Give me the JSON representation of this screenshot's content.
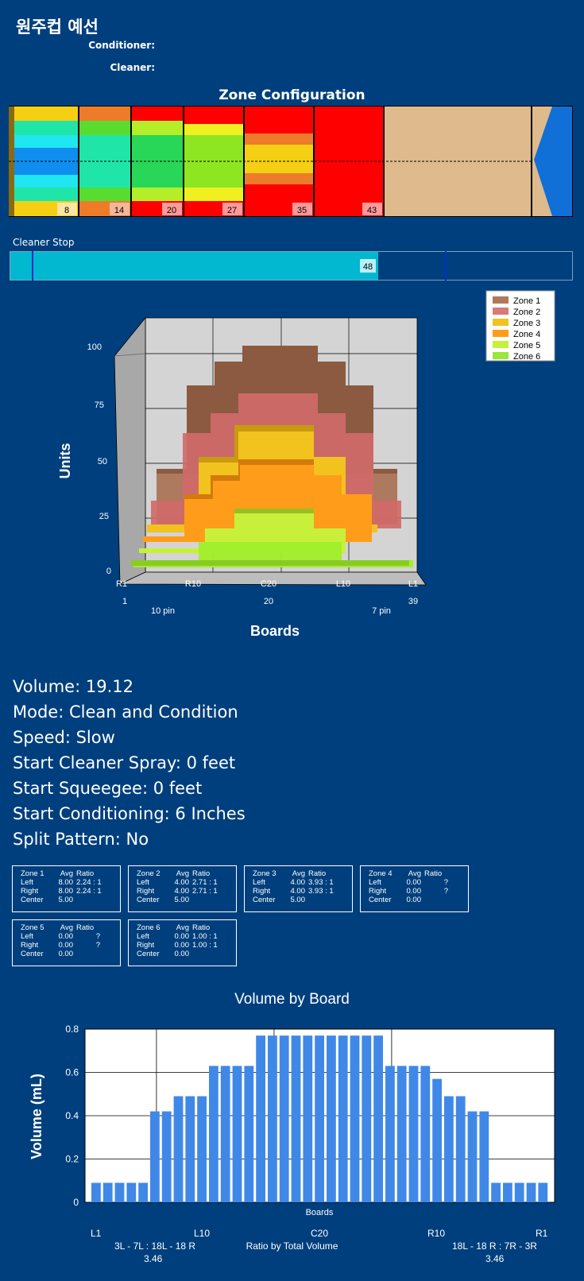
{
  "header": {
    "title": "원주컵 예선",
    "conditioner_label": "Conditioner:",
    "cleaner_label": "Cleaner:"
  },
  "zone_config": {
    "title": "Zone Configuration",
    "zone_markers": [
      "8",
      "14",
      "20",
      "27",
      "35",
      "43"
    ]
  },
  "cleaner_stop": {
    "label": "Cleaner Stop",
    "value": "48"
  },
  "chart3d": {
    "y_axis_title": "Units",
    "x_axis_title": "Boards",
    "y_ticks": [
      "0",
      "25",
      "50",
      "75",
      "100"
    ],
    "x_ticks": [
      "R1",
      "R10",
      "C20",
      "L10",
      "L1"
    ],
    "x_sub_ticks": [
      "1",
      "20",
      "39"
    ],
    "pin_labels": [
      "10 pin",
      "7 pin"
    ],
    "legend": [
      "Zone 1",
      "Zone 2",
      "Zone 3",
      "Zone 4",
      "Zone 5",
      "Zone 6"
    ],
    "colors": [
      "#b07a5a",
      "#d77a78",
      "#f2c21e",
      "#ff9d1a",
      "#c8f03a",
      "#9ae63a"
    ]
  },
  "params": {
    "volume": "Volume: 19.12",
    "mode": "Mode: Clean and Condition",
    "speed": "Speed: Slow",
    "start_cleaner_spray": "Start Cleaner Spray: 0 feet",
    "start_squeegee": "Start Squeegee: 0 feet",
    "start_conditioning": "Start Conditioning: 6 Inches",
    "split_pattern": "Split Pattern: No"
  },
  "zone_stats": [
    {
      "name": "Zone 1",
      "avg_h": "Avg",
      "ratio_h": "Ratio",
      "left_label": "Left",
      "left_avg": "8.00",
      "left_ratio": "2.24 : 1",
      "right_label": "Right",
      "right_avg": "8.00",
      "right_ratio": "2.24 : 1",
      "center_label": "Center",
      "center_avg": "5.00"
    },
    {
      "name": "Zone 2",
      "avg_h": "Avg",
      "ratio_h": "Ratio",
      "left_label": "Left",
      "left_avg": "4.00",
      "left_ratio": "2.71 : 1",
      "right_label": "Right",
      "right_avg": "4.00",
      "right_ratio": "2.71 : 1",
      "center_label": "Center",
      "center_avg": "5.00"
    },
    {
      "name": "Zone 3",
      "avg_h": "Avg",
      "ratio_h": "Ratio",
      "left_label": "Left",
      "left_avg": "4.00",
      "left_ratio": "3.93 : 1",
      "right_label": "Right",
      "right_avg": "4.00",
      "right_ratio": "3.93 : 1",
      "center_label": "Center",
      "center_avg": "5.00"
    },
    {
      "name": "Zone 4",
      "avg_h": "Avg",
      "ratio_h": "Ratio",
      "left_label": "Left",
      "left_avg": "0.00",
      "left_ratio": "?",
      "right_label": "Right",
      "right_avg": "0.00",
      "right_ratio": "?",
      "center_label": "Center",
      "center_avg": "0.00"
    },
    {
      "name": "Zone 5",
      "avg_h": "Avg",
      "ratio_h": "Ratio",
      "left_label": "Left",
      "left_avg": "0.00",
      "left_ratio": "?",
      "right_label": "Right",
      "right_avg": "0.00",
      "right_ratio": "?",
      "center_label": "Center",
      "center_avg": "0.00"
    },
    {
      "name": "Zone 6",
      "avg_h": "Avg",
      "ratio_h": "Ratio",
      "left_label": "Left",
      "left_avg": "0.00",
      "left_ratio": "1.00 : 1",
      "right_label": "Right",
      "right_avg": "0.00",
      "right_ratio": "1.00 : 1",
      "center_label": "Center",
      "center_avg": "0.00"
    }
  ],
  "chart_data": {
    "type": "bar",
    "title": "Volume by Board",
    "xlabel": "Boards",
    "ylabel": "Volume (mL)",
    "ylim": [
      0,
      0.8
    ],
    "y_ticks": [
      "0",
      "0.2",
      "0.4",
      "0.6",
      "0.8"
    ],
    "x_tick_labels": [
      "L1",
      "L10",
      "C20",
      "R10",
      "R1"
    ],
    "values": [
      0.09,
      0.09,
      0.09,
      0.09,
      0.09,
      0.42,
      0.42,
      0.49,
      0.49,
      0.49,
      0.63,
      0.63,
      0.63,
      0.63,
      0.77,
      0.77,
      0.77,
      0.77,
      0.77,
      0.77,
      0.77,
      0.77,
      0.77,
      0.77,
      0.77,
      0.63,
      0.63,
      0.63,
      0.63,
      0.57,
      0.49,
      0.49,
      0.42,
      0.42,
      0.09,
      0.09,
      0.09,
      0.09,
      0.09
    ],
    "bar_color": "#4088e8",
    "footer": {
      "left_ratio_label": "3L - 7L : 18L - 18 R",
      "left_ratio_value": "3.46",
      "center_label": "Ratio by Total Volume",
      "right_ratio_label": "18L - 18 R : 7R - 3R",
      "right_ratio_value": "3.46"
    }
  }
}
